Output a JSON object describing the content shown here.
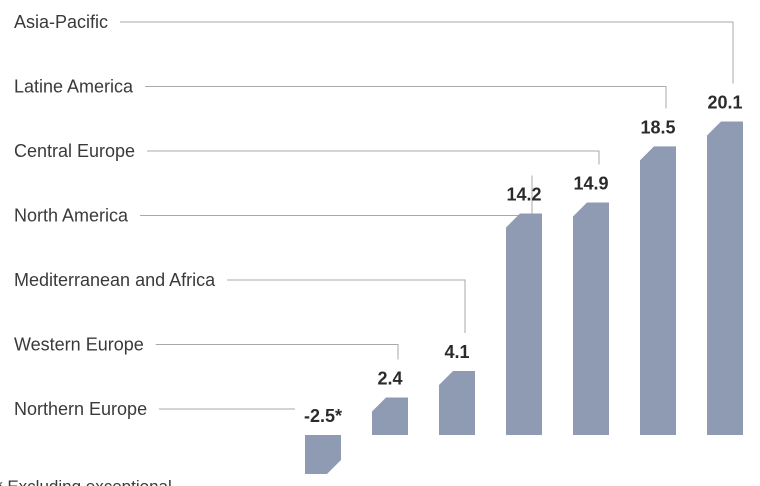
{
  "chart_data": {
    "type": "bar",
    "categories": [
      "Northern Europe",
      "Western Europe",
      "Mediterranean and Africa",
      "North America",
      "Central Europe",
      "Latine America",
      "Asia-Pacific"
    ],
    "values": [
      -2.5,
      2.4,
      4.1,
      14.2,
      14.9,
      18.5,
      20.1
    ],
    "value_labels": [
      "-2.5*",
      "2.4",
      "4.1",
      "14.2",
      "14.9",
      "18.5",
      "20.1"
    ],
    "bar_color": "#8f9bb3",
    "footnote": "* Excluding exceptional"
  }
}
